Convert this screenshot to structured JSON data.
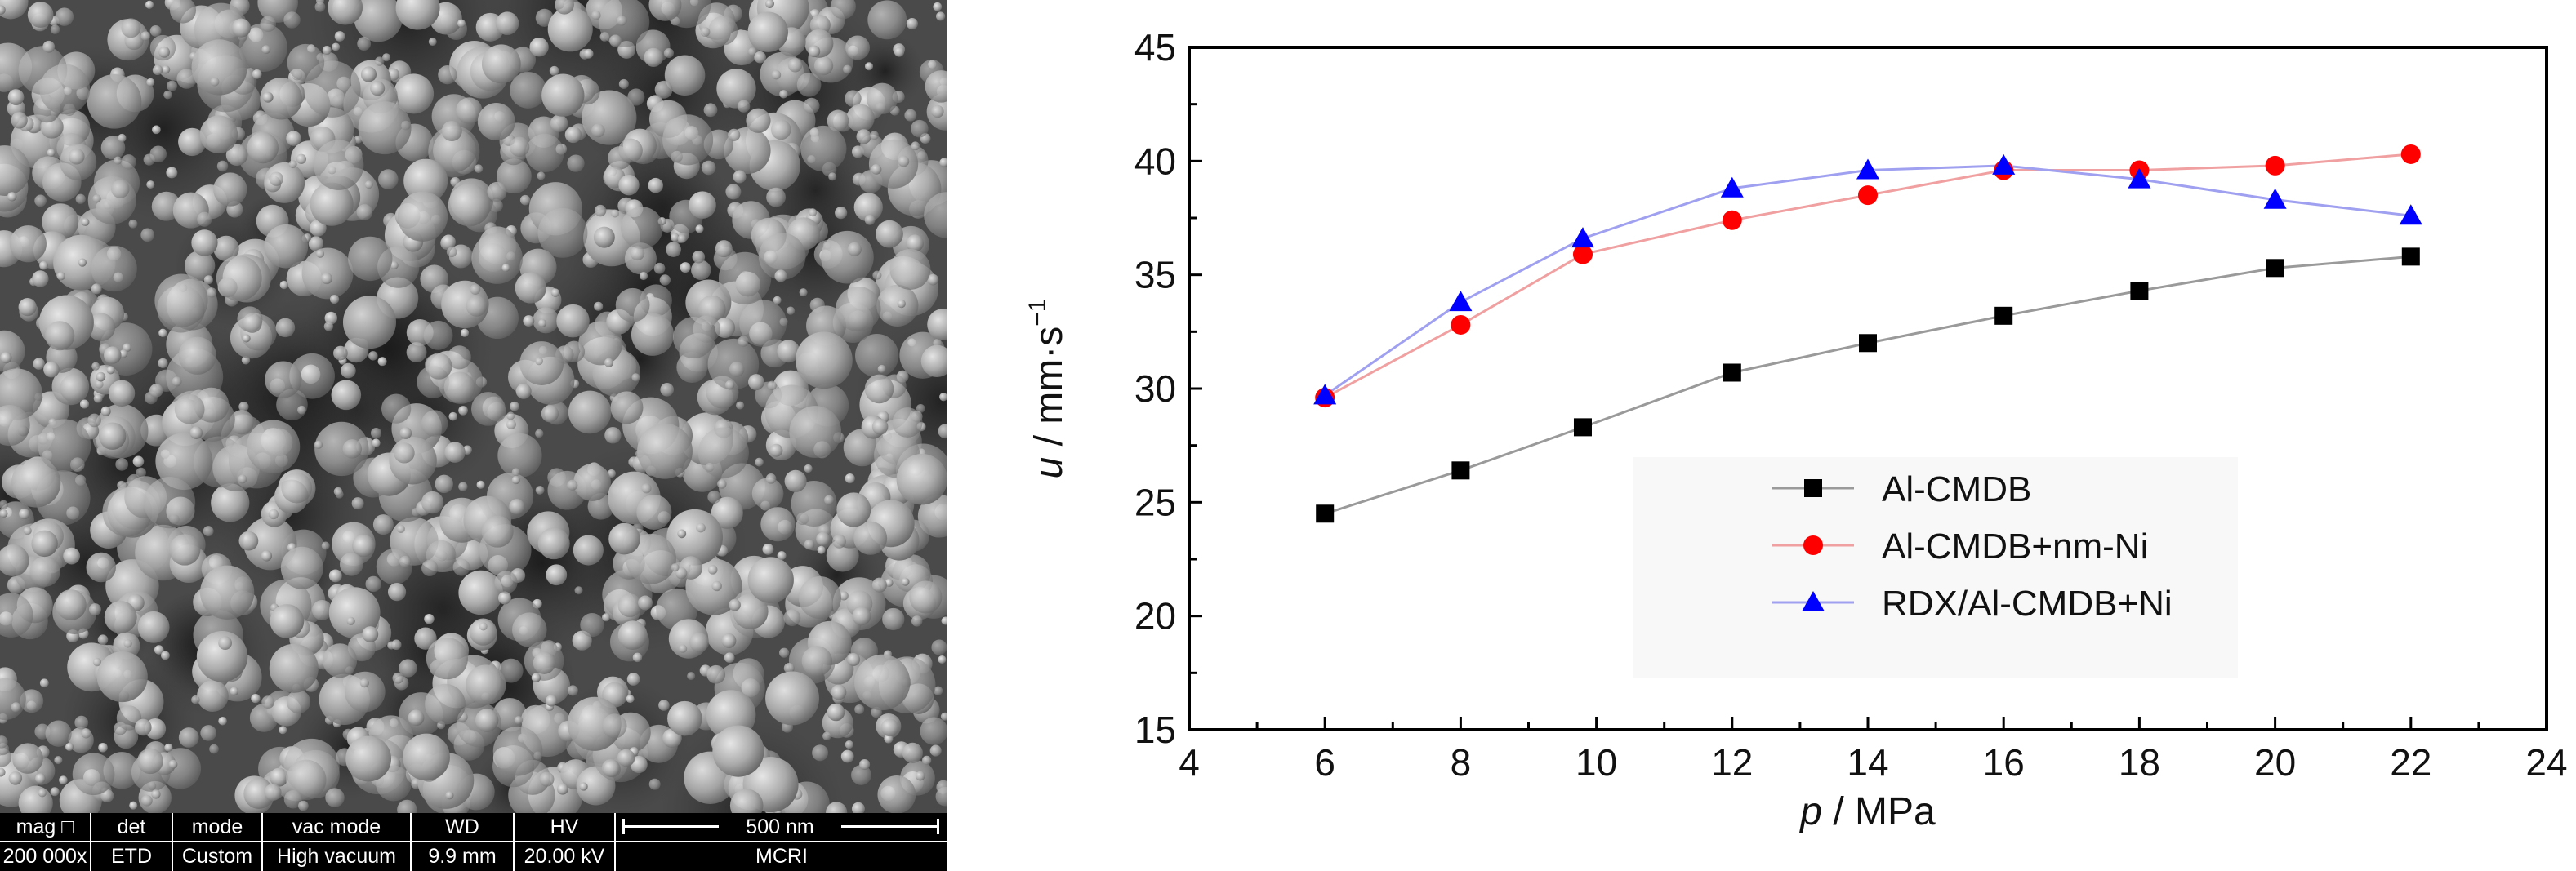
{
  "sem_image": {
    "info_bar": {
      "columns": [
        {
          "header": "mag □",
          "value": "200 000x"
        },
        {
          "header": "det",
          "value": "ETD"
        },
        {
          "header": "mode",
          "value": "Custom"
        },
        {
          "header": "vac mode",
          "value": "High vacuum"
        },
        {
          "header": "WD",
          "value": "9.9 mm"
        },
        {
          "header": "HV",
          "value": "20.00 kV"
        }
      ],
      "scale_bar_label": "500 nm",
      "institution": "MCRI"
    }
  },
  "chart_data": {
    "type": "line",
    "xlabel_var": "p",
    "xlabel_unit": " / MPa",
    "ylabel_var": "u",
    "ylabel_unit": " / mm·s",
    "ylabel_sup": "−1",
    "xlim": [
      4,
      24
    ],
    "ylim": [
      15,
      45
    ],
    "xticks": [
      4,
      6,
      8,
      10,
      12,
      14,
      16,
      18,
      20,
      22,
      24
    ],
    "yticks": [
      15,
      20,
      25,
      30,
      35,
      40,
      45
    ],
    "legend_position": "lower-right",
    "grid": false,
    "series": [
      {
        "name": "Al-CMDB",
        "marker": "square",
        "color": "#000000",
        "line_color": "#9a9a9a",
        "x": [
          6,
          8,
          9.8,
          12,
          14,
          16,
          18,
          20,
          22
        ],
        "y": [
          24.5,
          26.4,
          28.3,
          30.7,
          32.0,
          33.2,
          34.3,
          35.3,
          35.8
        ]
      },
      {
        "name": "Al-CMDB+nm-Ni",
        "marker": "circle",
        "color": "#ff0000",
        "line_color": "#f0a0a0",
        "x": [
          6,
          8,
          9.8,
          12,
          14,
          16,
          18,
          20,
          22
        ],
        "y": [
          29.6,
          32.8,
          35.9,
          37.4,
          38.5,
          39.6,
          39.6,
          39.8,
          40.3
        ]
      },
      {
        "name": "RDX/Al-CMDB+Ni",
        "marker": "triangle",
        "color": "#0000ff",
        "line_color": "#a0a0f0",
        "x": [
          6,
          8,
          9.8,
          12,
          14,
          16,
          18,
          20,
          22
        ],
        "y": [
          29.7,
          33.8,
          36.6,
          38.8,
          39.6,
          39.8,
          39.2,
          38.3,
          37.6
        ]
      }
    ]
  }
}
